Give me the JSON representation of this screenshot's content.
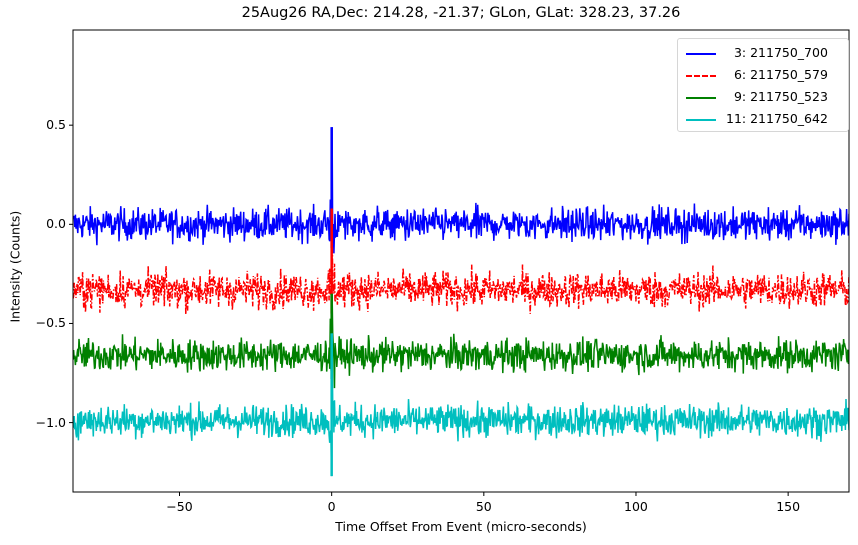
{
  "chart_data": {
    "type": "line",
    "title": "25Aug26 RA,Dec:  214.28, -21.37; GLon, GLat:  328.23,  37.26",
    "xlabel": "Time Offset From Event (micro-seconds)",
    "ylabel": "Intensity (Counts)",
    "xlim": [
      -85,
      170
    ],
    "ylim": [
      -1.35,
      0.98
    ],
    "xticks": [
      -50,
      0,
      50,
      100,
      150
    ],
    "xtick_labels": [
      "−50",
      "0",
      "50",
      "100",
      "150"
    ],
    "yticks": [
      0.5,
      0.0,
      -0.5,
      -1.0
    ],
    "ytick_labels": [
      "0.5",
      "0.0",
      "−0.5",
      "−1.0"
    ],
    "grid": false,
    "legend_position": "upper right",
    "series": [
      {
        "name": "3: 211750_700",
        "legend_label": "  3: 211750_700",
        "color": "#0000ff",
        "linestyle": "solid",
        "offset": 0.0,
        "noise_amplitude": 0.08,
        "event_peak": 0.49,
        "event_time": 0.0
      },
      {
        "name": "6: 211750_579",
        "legend_label": "  6: 211750_579",
        "color": "#ff0000",
        "linestyle": "dashdot",
        "offset": -0.33,
        "noise_amplitude": 0.09,
        "event_peak": 0.08,
        "event_time": 0.0
      },
      {
        "name": "9: 211750_523",
        "legend_label": "  9: 211750_523",
        "color": "#008000",
        "linestyle": "solid",
        "offset": -0.66,
        "noise_amplitude": 0.08,
        "event_peak": -0.35,
        "event_time": 0.0
      },
      {
        "name": "11: 211750_642",
        "legend_label": "11: 211750_642",
        "color": "#00bfbf",
        "linestyle": "solid",
        "offset": -0.99,
        "noise_amplitude": 0.08,
        "event_peak": -0.55,
        "event_min": -1.27,
        "event_time": 0.0
      }
    ]
  }
}
